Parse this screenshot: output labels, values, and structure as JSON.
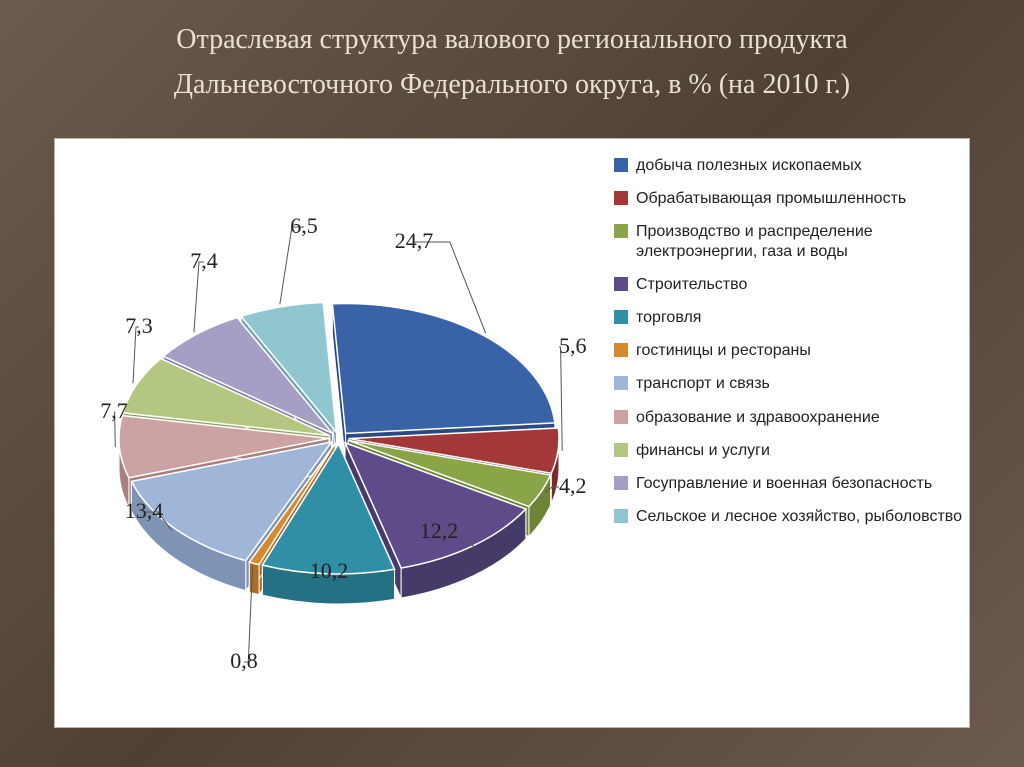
{
  "title_line1": "Отраслевая структура валового регионального продукта",
  "title_line2": "Дальневосточного Федерального округа, в % (на 2010 г.)",
  "chart": {
    "type": "pie-3d",
    "background_color": "#ffffff",
    "label_font": "Times New Roman",
    "label_fontsize": 22,
    "label_color": "#222222",
    "legend_font": "Arial",
    "legend_fontsize": 16,
    "legend_marker_size": 14,
    "explode_gap": 10,
    "depth": 30,
    "slices": [
      {
        "label": "добыча полезных ископаемых",
        "value": 24.7,
        "color": "#3a62a6",
        "side": "#2a4a82"
      },
      {
        "label": "Обрабатывающая промышленность",
        "value": 5.6,
        "color": "#a43838",
        "side": "#7a2a2a"
      },
      {
        "label": "Производство и распределение электроэнергии, газа и воды",
        "value": 4.2,
        "color": "#8aa448",
        "side": "#6e8438"
      },
      {
        "label": "Строительство",
        "value": 12.2,
        "color": "#5d4b8a",
        "side": "#463a68"
      },
      {
        "label": "торговля",
        "value": 10.2,
        "color": "#2f8fa6",
        "side": "#257184"
      },
      {
        "label": "гостиницы и рестораны",
        "value": 0.8,
        "color": "#d68a30",
        "side": "#aa6e26"
      },
      {
        "label": "транспорт и связь",
        "value": 13.4,
        "color": "#a0b6d8",
        "side": "#7f94b4"
      },
      {
        "label": "образование и здравоохранение",
        "value": 7.7,
        "color": "#cda2a2",
        "side": "#a88080"
      },
      {
        "label": "финансы и услуги",
        "value": 7.3,
        "color": "#b4c780",
        "side": "#92a265"
      },
      {
        "label": "Госуправление и военная безопасность",
        "value": 7.4,
        "color": "#a69ec4",
        "side": "#867ea2"
      },
      {
        "label": "Сельское и лесное хозяйство, рыболовство",
        "value": 6.5,
        "color": "#8fc6d0",
        "side": "#72a2ac"
      }
    ]
  }
}
